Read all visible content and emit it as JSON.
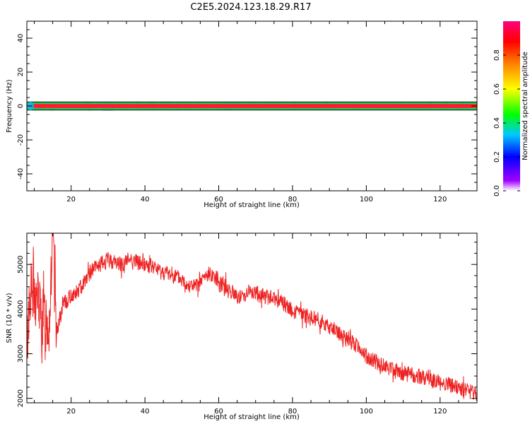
{
  "title": "C2E5.2024.123.18.29.R17",
  "chart_data": [
    {
      "type": "heatmap",
      "xlabel": "Height of straight line (km)",
      "ylabel": "Frequency (Hz)",
      "xlim": [
        8,
        130
      ],
      "ylim": [
        -50,
        50
      ],
      "x_ticks": [
        20,
        40,
        60,
        80,
        100,
        120
      ],
      "y_ticks": [
        -40,
        -20,
        0,
        20,
        40
      ],
      "colorbar": {
        "label": "Normalized spectral amplitude",
        "range": [
          0,
          1
        ],
        "ticks": [
          "0.0",
          "0.2",
          "0.4",
          "0.6",
          "0.8"
        ],
        "colors": [
          "#ffffff",
          "#a000ff",
          "#0000ff",
          "#00c8ff",
          "#00ff00",
          "#ffff00",
          "#ff8000",
          "#ff0000",
          "#ff0080"
        ]
      },
      "band": {
        "center_hz": 0,
        "halfwidth_hz": 1
      }
    },
    {
      "type": "line",
      "xlabel": "Height of straight line (km)",
      "ylabel": "SNR (10 * v/v)",
      "xlim": [
        8,
        130
      ],
      "ylim": [
        1900,
        5700
      ],
      "x_ticks": [
        20,
        40,
        60,
        80,
        100,
        120
      ],
      "y_ticks": [
        2000,
        3000,
        4000,
        5000
      ],
      "line_color": "#ee2222",
      "x": [
        8,
        9,
        10,
        11,
        12,
        13,
        14,
        15,
        16,
        18,
        20,
        22,
        24,
        26,
        28,
        30,
        32,
        34,
        36,
        38,
        40,
        42,
        44,
        46,
        48,
        50,
        52,
        54,
        56,
        58,
        60,
        62,
        64,
        66,
        68,
        70,
        72,
        74,
        76,
        78,
        80,
        82,
        84,
        86,
        88,
        90,
        92,
        94,
        96,
        98,
        100,
        102,
        104,
        106,
        108,
        110,
        112,
        114,
        116,
        118,
        120,
        122,
        124,
        126,
        128,
        130
      ],
      "y": [
        3200,
        4500,
        4100,
        4300,
        3700,
        3900,
        3600,
        5600,
        3500,
        4100,
        4300,
        4400,
        4700,
        4900,
        5000,
        5100,
        5050,
        5000,
        5150,
        5050,
        5000,
        4950,
        4850,
        4800,
        4750,
        4650,
        4550,
        4500,
        4700,
        4800,
        4650,
        4500,
        4350,
        4250,
        4400,
        4350,
        4300,
        4250,
        4200,
        4100,
        3950,
        3900,
        3850,
        3800,
        3700,
        3600,
        3500,
        3350,
        3250,
        3150,
        2950,
        2850,
        2750,
        2700,
        2650,
        2550,
        2550,
        2500,
        2450,
        2400,
        2350,
        2300,
        2250,
        2200,
        2150,
        2100
      ]
    }
  ]
}
